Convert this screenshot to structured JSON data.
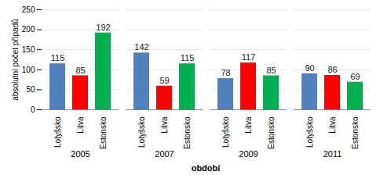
{
  "chart_data": {
    "type": "bar",
    "x_label": "období",
    "y_label": "absolutní počet případů",
    "categories": [
      "2005",
      "2007",
      "2009",
      "2011"
    ],
    "series": [
      {
        "name": "Lotyšsko",
        "color": "#4f81bd",
        "values": [
          115,
          142,
          78,
          90
        ]
      },
      {
        "name": "Litva",
        "color": "#ff0000",
        "values": [
          85,
          59,
          117,
          86
        ]
      },
      {
        "name": "Estonsko",
        "color": "#00b050",
        "values": [
          192,
          115,
          85,
          69
        ]
      }
    ],
    "ylim": [
      0,
      250
    ],
    "yticks": [
      0,
      50,
      100,
      150,
      200,
      250
    ],
    "grid": true,
    "data_labels": true
  }
}
